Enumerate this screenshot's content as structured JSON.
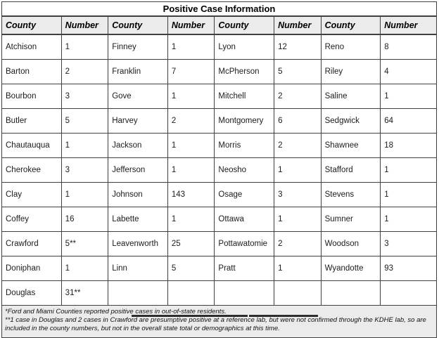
{
  "title": "Positive Case Information",
  "table": {
    "column_headers": [
      "County",
      "Number",
      "County",
      "Number",
      "County",
      "Number",
      "County",
      "Number"
    ],
    "rows": [
      [
        "Atchison",
        "1",
        "Finney",
        "1",
        "Lyon",
        "12",
        "Reno",
        "8"
      ],
      [
        "Barton",
        "2",
        "Franklin",
        "7",
        "McPherson",
        "5",
        "Riley",
        "4"
      ],
      [
        "Bourbon",
        "3",
        "Gove",
        "1",
        "Mitchell",
        "2",
        "Saline",
        "1"
      ],
      [
        "Butler",
        "5",
        "Harvey",
        "2",
        "Montgomery",
        "6",
        "Sedgwick",
        "64"
      ],
      [
        "Chautauqua",
        "1",
        "Jackson",
        "1",
        "Morris",
        "2",
        "Shawnee",
        "18"
      ],
      [
        "Cherokee",
        "3",
        "Jefferson",
        "1",
        "Neosho",
        "1",
        "Stafford",
        "1"
      ],
      [
        "Clay",
        "1",
        "Johnson",
        "143",
        "Osage",
        "3",
        "Stevens",
        "1"
      ],
      [
        "Coffey",
        "16",
        "Labette",
        "1",
        "Ottawa",
        "1",
        "Sumner",
        "1"
      ],
      [
        "Crawford",
        "5**",
        "Leavenworth",
        "25",
        "Pottawatomie",
        "2",
        "Woodson",
        "3"
      ],
      [
        "Doniphan",
        "1",
        "Linn",
        "5",
        "Pratt",
        "1",
        "Wyandotte",
        "93"
      ],
      [
        "Douglas",
        "31**",
        "",
        "",
        "",
        "",
        "",
        ""
      ]
    ]
  },
  "footnotes": [
    "*Ford and Miami Counties reported positive cases in out-of-state residents.",
    "**1 case in Douglas and 2 cases in Crawford are presumptive positive at a reference lab, but were not confirmed through the KDHE lab, so are included in the county numbers, but not in the overall state total or demographics at this time."
  ],
  "colors": {
    "header_bg": "#ebebeb",
    "footer_bg": "#ebebeb",
    "border": "#404040",
    "text": "#1c1c1c"
  }
}
